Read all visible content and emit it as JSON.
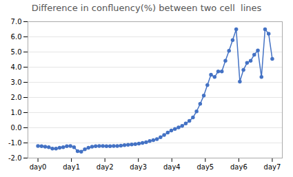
{
  "chart_data": {
    "type": "line",
    "title": "Difference in confluency(%) between two cell  lines",
    "x": [
      0,
      0.107692,
      0.215385,
      0.323077,
      0.430769,
      0.538462,
      0.646154,
      0.753846,
      0.861538,
      0.969231,
      1.076923,
      1.184615,
      1.292308,
      1.4,
      1.507692,
      1.615385,
      1.723077,
      1.830769,
      1.938462,
      2.046154,
      2.153846,
      2.261538,
      2.369231,
      2.476923,
      2.584615,
      2.692308,
      2.8,
      2.907692,
      3.015385,
      3.123077,
      3.230769,
      3.338462,
      3.446154,
      3.553846,
      3.661538,
      3.769231,
      3.876923,
      3.984615,
      4.092308,
      4.2,
      4.307692,
      4.415385,
      4.523077,
      4.630769,
      4.738462,
      4.846154,
      4.953846,
      5.061538,
      5.169231,
      5.276923,
      5.384615,
      5.492308,
      5.6,
      5.707692,
      5.815385,
      5.923077,
      6.030769,
      6.138462,
      6.246154,
      6.353846,
      6.461538,
      6.569231,
      6.676923,
      6.784615,
      6.892308,
      7
    ],
    "values": [
      -1.2,
      -1.22,
      -1.25,
      -1.28,
      -1.38,
      -1.38,
      -1.32,
      -1.28,
      -1.22,
      -1.2,
      -1.28,
      -1.55,
      -1.58,
      -1.42,
      -1.32,
      -1.25,
      -1.22,
      -1.2,
      -1.2,
      -1.22,
      -1.22,
      -1.2,
      -1.2,
      -1.18,
      -1.15,
      -1.12,
      -1.1,
      -1.08,
      -1.05,
      -1.0,
      -0.95,
      -0.88,
      -0.82,
      -0.75,
      -0.62,
      -0.48,
      -0.32,
      -0.18,
      -0.08,
      0.02,
      0.12,
      0.28,
      0.45,
      0.68,
      1.08,
      1.58,
      2.12,
      2.82,
      3.5,
      3.35,
      3.72,
      3.72,
      4.42,
      5.08,
      5.78,
      6.5,
      3.05,
      3.82,
      4.28,
      4.42,
      4.82,
      5.1,
      3.35,
      6.5,
      6.2,
      4.55
    ],
    "color": "#4472c4",
    "marker": "circle",
    "line_style": "solid",
    "xlim": [
      -0.3,
      7.3
    ],
    "xticks": [
      {
        "value": 0,
        "label": "day0"
      },
      {
        "value": 1,
        "label": "day1"
      },
      {
        "value": 2,
        "label": "day2"
      },
      {
        "value": 3,
        "label": "day3"
      },
      {
        "value": 4,
        "label": "day4"
      },
      {
        "value": 5,
        "label": "day5"
      },
      {
        "value": 6,
        "label": "day6"
      },
      {
        "value": 7,
        "label": "day7"
      }
    ],
    "ylim": [
      -2.0,
      7.0
    ],
    "yticks": [
      {
        "value": -2.0,
        "label": "-2.0"
      },
      {
        "value": -1.0,
        "label": "-1.0"
      },
      {
        "value": 0.0,
        "label": "0.0"
      },
      {
        "value": 1.0,
        "label": "1.0"
      },
      {
        "value": 2.0,
        "label": "2.0"
      },
      {
        "value": 3.0,
        "label": "3.0"
      },
      {
        "value": 4.0,
        "label": "4.0"
      },
      {
        "value": 5.0,
        "label": "5.0"
      },
      {
        "value": 6.0,
        "label": "6.0"
      },
      {
        "value": 7.0,
        "label": "7.0"
      }
    ],
    "grid": true
  }
}
